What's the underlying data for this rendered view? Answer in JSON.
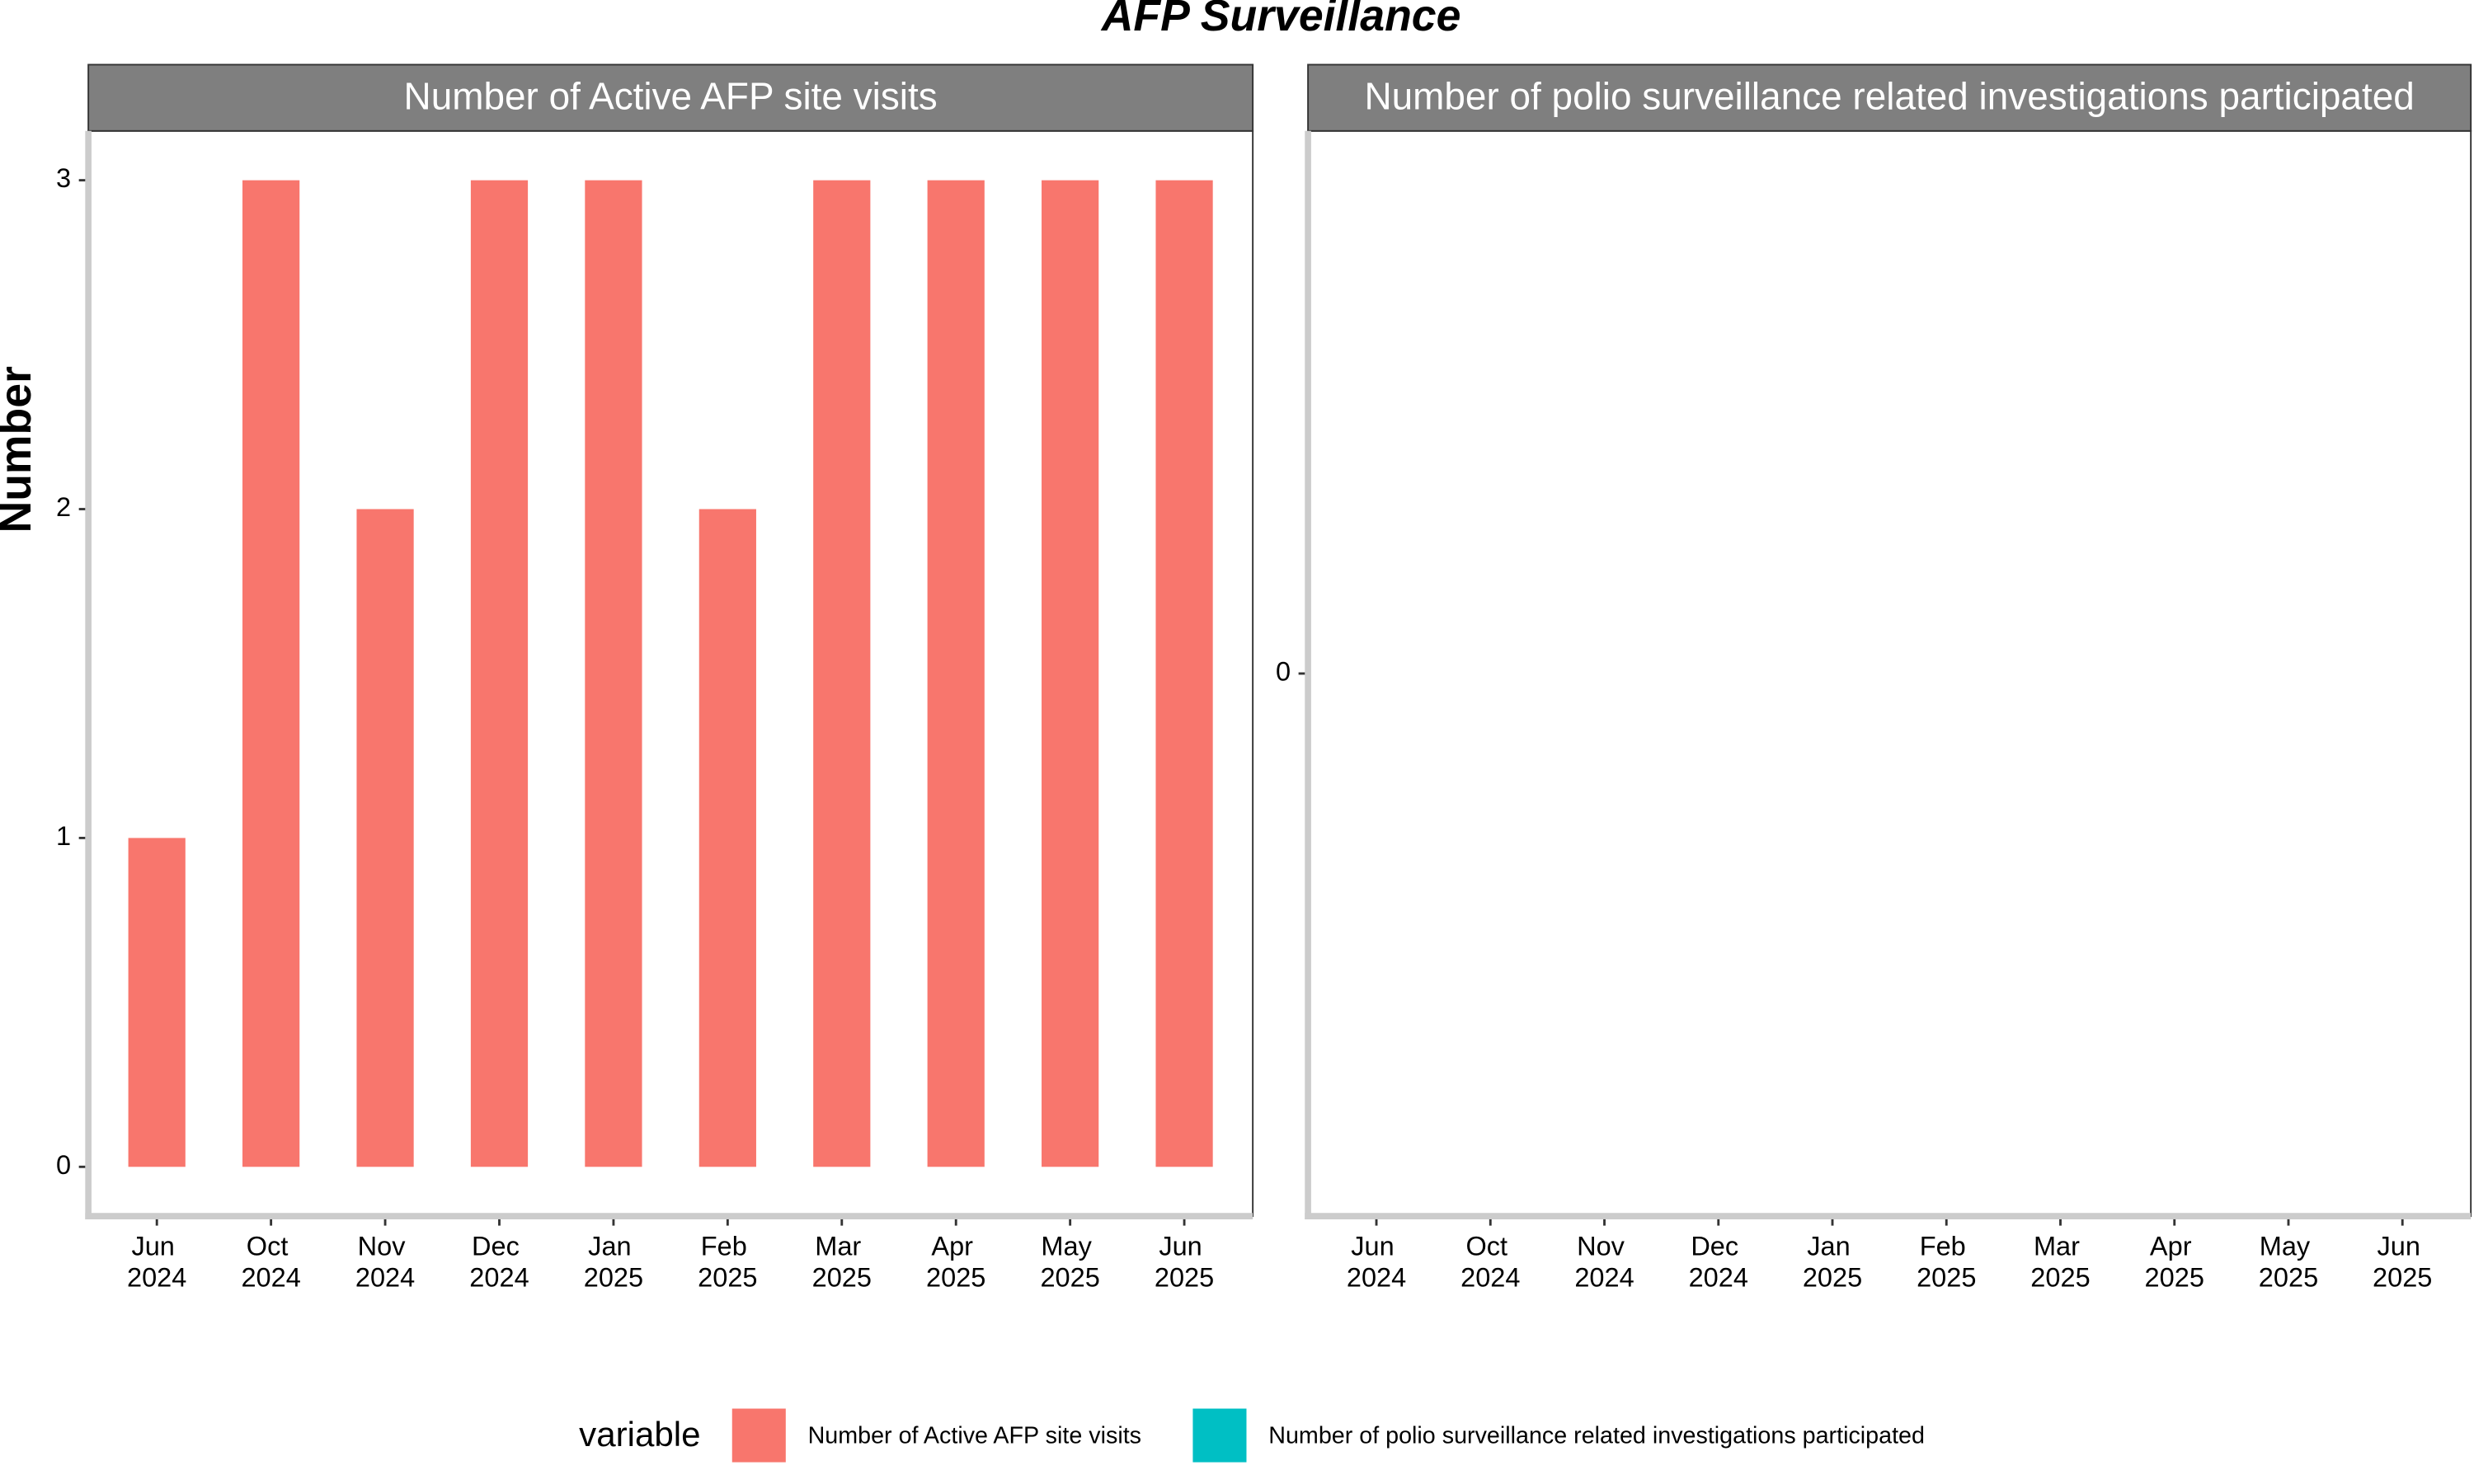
{
  "title": "AFP Surveillance",
  "ylabel": "Number",
  "legend": {
    "title": "variable"
  },
  "chart_data": [
    {
      "type": "bar",
      "categories": [
        "Jun 2024",
        "Oct 2024",
        "Nov 2024",
        "Dec 2024",
        "Jan 2025",
        "Feb 2025",
        "Mar 2025",
        "Apr 2025",
        "May 2025",
        "Jun 2025"
      ],
      "series": [
        {
          "name": "Number of Active AFP site visits",
          "color": "#f8766d",
          "values": [
            1,
            3,
            2,
            3,
            3,
            2,
            3,
            3,
            3,
            3
          ]
        }
      ],
      "ylim": [
        -0.15,
        3.15
      ],
      "yticks": [
        0,
        1,
        2,
        3
      ]
    },
    {
      "type": "bar",
      "categories": [
        "Jun 2024",
        "Oct 2024",
        "Nov 2024",
        "Dec 2024",
        "Jan 2025",
        "Feb 2025",
        "Mar 2025",
        "Apr 2025",
        "May 2025",
        "Jun 2025"
      ],
      "series": [
        {
          "name": "Number of polio surveillance related investigations participated",
          "color": "#00bfc4",
          "values": [
            null,
            null,
            null,
            null,
            null,
            null,
            null,
            null,
            null,
            null
          ]
        }
      ],
      "ylim": [
        -0.05,
        0.05
      ],
      "yticks": [
        0
      ]
    }
  ]
}
